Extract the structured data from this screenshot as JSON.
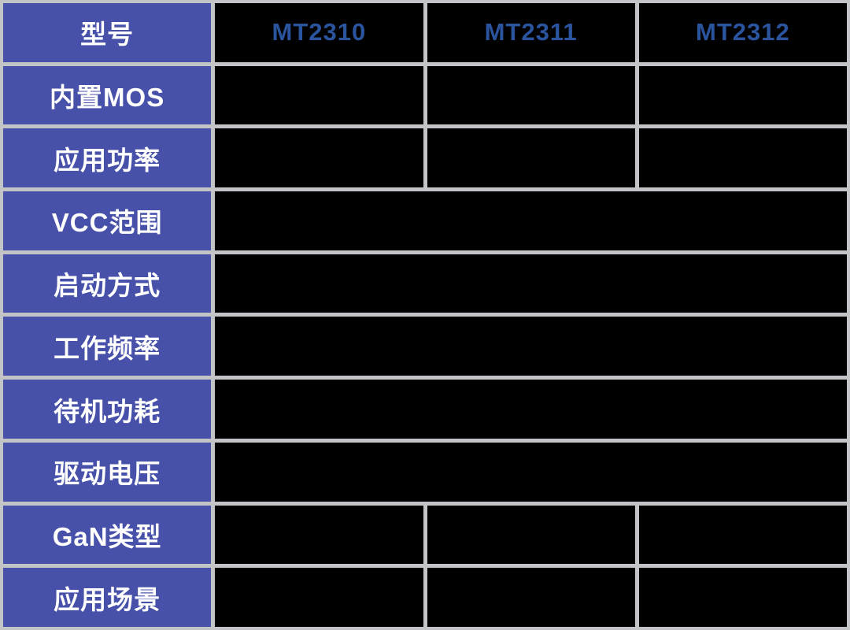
{
  "table": {
    "header": {
      "label": "型号",
      "models": [
        "MT2310",
        "MT2311",
        "MT2312"
      ]
    },
    "rows": [
      {
        "label": "内置MOS",
        "merged": false
      },
      {
        "label": "应用功率",
        "merged": false
      },
      {
        "label": "VCC范围",
        "merged": true
      },
      {
        "label": "启动方式",
        "merged": true
      },
      {
        "label": "工作频率",
        "merged": true
      },
      {
        "label": "待机功耗",
        "merged": true
      },
      {
        "label": "驱动电压",
        "merged": true
      },
      {
        "label": "GaN类型",
        "merged": false
      },
      {
        "label": "应用场景",
        "merged": false
      }
    ],
    "colors": {
      "row_header_bg": "#4751a9",
      "row_header_text": "#ffffff",
      "model_text": "#2b549e",
      "cell_bg": "#000000",
      "gridline": "#c2c4c8"
    }
  }
}
